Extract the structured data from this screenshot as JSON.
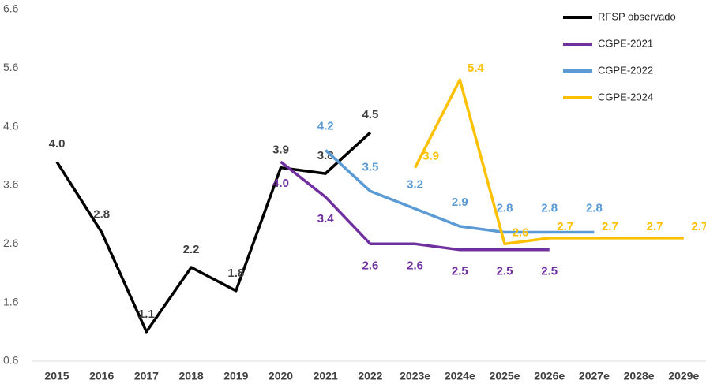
{
  "chart_data": {
    "type": "line",
    "categories": [
      "2015",
      "2016",
      "2017",
      "2018",
      "2019",
      "2020",
      "2021",
      "2022",
      "2023e",
      "2024e",
      "2025e",
      "2026e",
      "2027e",
      "2028e",
      "2029e"
    ],
    "ylim": [
      0.6,
      6.6
    ],
    "yticks": [
      0.6,
      1.6,
      2.6,
      3.6,
      4.6,
      5.6,
      6.6
    ],
    "grid": false,
    "legend": "top-right",
    "series": [
      {
        "name": "RFSP observado",
        "color": "#000000",
        "label_color": "#404040",
        "values": [
          4.0,
          2.8,
          1.1,
          2.2,
          1.8,
          3.9,
          3.8,
          4.5,
          null,
          null,
          null,
          null,
          null,
          null,
          null
        ],
        "value_labels": [
          "4.0",
          "2.8",
          "1.1",
          "2.2",
          "1.8",
          "3.9",
          "3.8",
          "4.5",
          null,
          null,
          null,
          null,
          null,
          null,
          null
        ]
      },
      {
        "name": "CGPE-2021",
        "color": "#7030a0",
        "label_color": "#7030a0",
        "values": [
          null,
          null,
          null,
          null,
          null,
          4.0,
          3.4,
          2.6,
          2.6,
          2.5,
          2.5,
          2.5,
          null,
          null,
          null
        ],
        "value_labels": [
          null,
          null,
          null,
          null,
          null,
          "4.0",
          "3.4",
          "2.6",
          "2.6",
          "2.5",
          "2.5",
          "2.5",
          null,
          null,
          null
        ]
      },
      {
        "name": "CGPE-2022",
        "color": "#5b9bd5",
        "label_color": "#5b9bd5",
        "values": [
          null,
          null,
          null,
          null,
          null,
          null,
          4.2,
          3.5,
          3.2,
          2.9,
          2.8,
          2.8,
          2.8,
          null,
          null
        ],
        "value_labels": [
          null,
          null,
          null,
          null,
          null,
          null,
          "4.2",
          "3.5",
          "3.2",
          "2.9",
          "2.8",
          "2.8",
          "2.8",
          null,
          null
        ]
      },
      {
        "name": "CGPE-2024",
        "color": "#ffc000",
        "label_color": "#ffc000",
        "values": [
          null,
          null,
          null,
          null,
          null,
          null,
          null,
          null,
          3.9,
          5.4,
          2.6,
          2.7,
          2.7,
          2.7,
          2.7
        ],
        "value_labels": [
          null,
          null,
          null,
          null,
          null,
          null,
          null,
          null,
          "3.9",
          "5.4",
          "2.6",
          "2.7",
          "2.7",
          "2.7",
          "2.7"
        ]
      }
    ]
  }
}
